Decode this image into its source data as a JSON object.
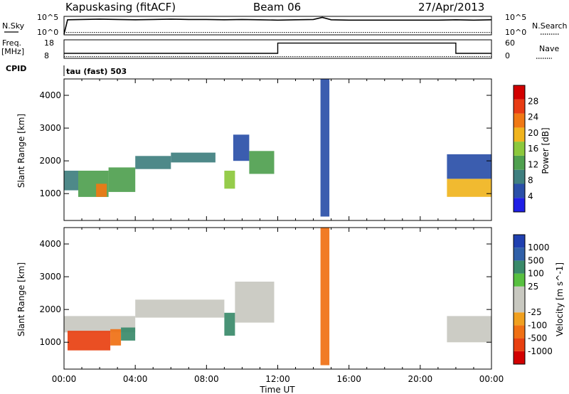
{
  "header": {
    "station": "Kapuskasing (fitACF)",
    "beam": "Beam 06",
    "date": "27/Apr/2013"
  },
  "top_panels": {
    "nsky_label": "N.Sky",
    "nsky_ticks": [
      "10^5",
      "10^0"
    ],
    "nsearch_label": "N.Search",
    "nsearch_ticks": [
      "10^5",
      "10^0"
    ],
    "freq_label": "Freq.",
    "freq_unit": "[MHz]",
    "freq_ticks": [
      "18",
      "8"
    ],
    "nave_label": "Nave",
    "nave_ticks": [
      "60",
      "0"
    ],
    "cpid_label": "CPID",
    "mode_label": "tau (fast) 503"
  },
  "colors": {
    "power_scale": [
      "#1f1fe6",
      "#2a4fa8",
      "#3f7f7f",
      "#4fa04f",
      "#8cc83c",
      "#f0b41e",
      "#f07814",
      "#e83c14",
      "#d20000"
    ],
    "velocity_scale": [
      "#2040b0",
      "#3060a8",
      "#3a8a6a",
      "#58c040",
      "#c8c8c0",
      "#c8c8c0",
      "#f0a020",
      "#f07014",
      "#e84010",
      "#d20000"
    ]
  },
  "chart_data": [
    {
      "type": "line",
      "title": "N.Sky / N.Search",
      "x_unit": "hours UT",
      "xlim": [
        0,
        24
      ],
      "ylabel_left": "N.Sky",
      "ylabel_right": "N.Search",
      "series": [
        {
          "name": "N.Sky",
          "x": [
            0,
            0.2,
            1,
            2,
            3,
            4,
            5,
            6,
            7,
            8,
            9,
            10,
            11,
            12,
            13,
            14,
            14.5,
            15,
            16,
            17,
            18,
            19,
            20,
            21,
            22,
            23,
            24
          ],
          "y": [
            0,
            4.2,
            4.3,
            4.4,
            4.3,
            4.2,
            4.3,
            4.4,
            4.3,
            4.3,
            4.2,
            4.3,
            4.2,
            4.1,
            4.2,
            4.3,
            4.9,
            4.2,
            4.1,
            4.1,
            4.1,
            4.1,
            4.1,
            4.1,
            4.2,
            4.1,
            4.2
          ]
        },
        {
          "name": "N.Search",
          "x": [
            0,
            24
          ],
          "y": [
            0.5,
            0.5
          ]
        }
      ]
    },
    {
      "type": "line",
      "title": "Freq. / Nave",
      "x_unit": "hours UT",
      "xlim": [
        0,
        24
      ],
      "ylabel_left": "Freq. [MHz]",
      "ylabel_right": "Nave",
      "series": [
        {
          "name": "Freq.",
          "x": [
            0,
            12,
            12,
            22,
            22,
            24
          ],
          "y": [
            10.5,
            10.5,
            16.5,
            16.5,
            10.5,
            10.5
          ]
        },
        {
          "name": "Nave",
          "x": [
            0,
            24
          ],
          "y": [
            4,
            4
          ]
        }
      ]
    },
    {
      "type": "heatmap",
      "title": "Power",
      "xlabel": "",
      "ylabel": "Slant Range [km]",
      "x_unit": "hours UT",
      "xlim": [
        0,
        24
      ],
      "ylim": [
        180,
        4500
      ],
      "y_ticks": [
        1000,
        2000,
        3000,
        4000
      ],
      "colorbar_label": "Power [dB]",
      "colorbar_ticks": [
        "4",
        "8",
        "12",
        "16",
        "20",
        "24",
        "28"
      ],
      "colorbar_range": [
        0,
        30
      ],
      "regions": [
        {
          "x0": 0.0,
          "x1": 0.8,
          "y0": 1100,
          "y1": 1700,
          "v": 8
        },
        {
          "x0": 0.8,
          "x1": 2.5,
          "y0": 900,
          "y1": 1700,
          "v": 13
        },
        {
          "x0": 1.8,
          "x1": 2.4,
          "y0": 900,
          "y1": 1300,
          "v": 22
        },
        {
          "x0": 2.5,
          "x1": 4.0,
          "y0": 1050,
          "y1": 1800,
          "v": 12
        },
        {
          "x0": 4.0,
          "x1": 6.0,
          "y0": 1750,
          "y1": 2150,
          "v": 8
        },
        {
          "x0": 6.0,
          "x1": 8.5,
          "y0": 1950,
          "y1": 2250,
          "v": 9
        },
        {
          "x0": 9.0,
          "x1": 9.6,
          "y0": 1150,
          "y1": 1700,
          "v": 14
        },
        {
          "x0": 9.5,
          "x1": 10.4,
          "y0": 2000,
          "y1": 2800,
          "v": 6
        },
        {
          "x0": 10.4,
          "x1": 11.8,
          "y0": 1600,
          "y1": 2300,
          "v": 11
        },
        {
          "x0": 14.4,
          "x1": 14.9,
          "y0": 300,
          "y1": 4500,
          "v": 6
        },
        {
          "x0": 21.5,
          "x1": 24.0,
          "y0": 900,
          "y1": 1450,
          "v": 17
        },
        {
          "x0": 21.5,
          "x1": 24.0,
          "y0": 1450,
          "y1": 2200,
          "v": 6
        }
      ]
    },
    {
      "type": "heatmap",
      "title": "Velocity",
      "xlabel": "Time UT",
      "ylabel": "Slant Range [km]",
      "x_unit": "hours UT",
      "xlim": [
        0,
        24
      ],
      "ylim": [
        180,
        4500
      ],
      "y_ticks": [
        1000,
        2000,
        3000,
        4000
      ],
      "x_ticks": [
        "00:00",
        "04:00",
        "08:00",
        "12:00",
        "16:00",
        "20:00",
        "00:00"
      ],
      "colorbar_label": "Velocity [m s^-1]",
      "colorbar_ticks": [
        "1000",
        "500",
        "100",
        "25",
        "-25",
        "-100",
        "-500",
        "-1000"
      ],
      "regions": [
        {
          "x0": 0.0,
          "x1": 4.0,
          "y0": 1300,
          "y1": 1800,
          "v": 0
        },
        {
          "x0": 0.2,
          "x1": 2.6,
          "y0": 750,
          "y1": 1350,
          "v": -300
        },
        {
          "x0": 2.6,
          "x1": 3.2,
          "y0": 900,
          "y1": 1400,
          "v": -80
        },
        {
          "x0": 3.2,
          "x1": 4.0,
          "y0": 1050,
          "y1": 1450,
          "v": 80
        },
        {
          "x0": 4.0,
          "x1": 9.0,
          "y0": 1750,
          "y1": 2300,
          "v": 0
        },
        {
          "x0": 9.0,
          "x1": 9.6,
          "y0": 1200,
          "y1": 1900,
          "v": 150
        },
        {
          "x0": 9.6,
          "x1": 11.8,
          "y0": 1600,
          "y1": 2850,
          "v": 0
        },
        {
          "x0": 14.4,
          "x1": 14.9,
          "y0": 300,
          "y1": 4500,
          "v": -200
        },
        {
          "x0": 21.5,
          "x1": 24.0,
          "y0": 1000,
          "y1": 1800,
          "v": 0
        }
      ]
    }
  ]
}
